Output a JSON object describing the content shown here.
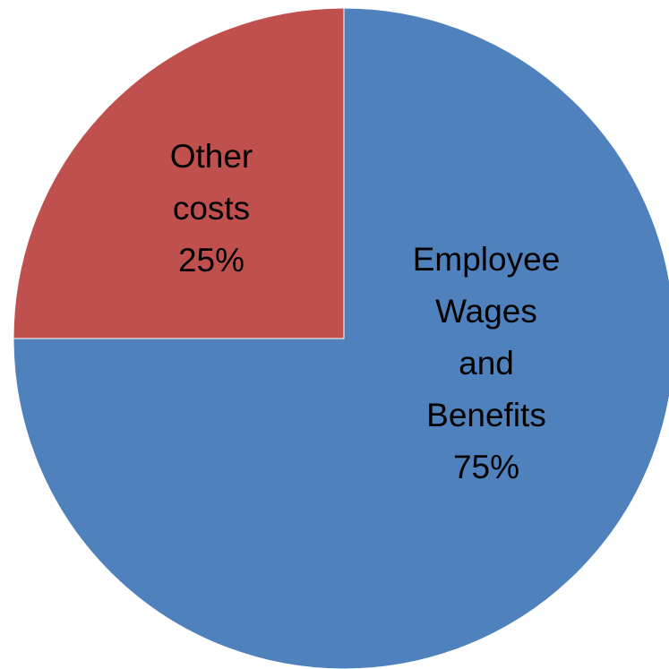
{
  "chart_data": {
    "type": "pie",
    "title": "",
    "series": [
      {
        "values": [
          75,
          25
        ],
        "categories": [
          "Employee Wages and Benefits",
          "Other costs"
        ]
      }
    ],
    "slices": [
      {
        "label_lines": [
          "Employee",
          "Wages",
          "and",
          "Benefits"
        ],
        "percent_text": "75%",
        "value": 75,
        "color": "#4F81BD"
      },
      {
        "label_lines": [
          "Other",
          "costs"
        ],
        "percent_text": "25%",
        "value": 25,
        "color": "#C0504D"
      }
    ],
    "start_angle": "12 o'clock",
    "direction": "clockwise",
    "legend": "none"
  }
}
